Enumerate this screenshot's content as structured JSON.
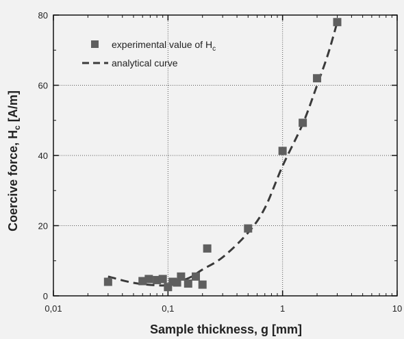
{
  "chart_data": {
    "type": "scatter",
    "xlabel": "Sample thickness, g [mm]",
    "ylabel": "Coercive force, H",
    "ylabel_sub": "c",
    "ylabel_unit": " [A/m]",
    "x_scale": "log",
    "xlim": [
      0.01,
      10
    ],
    "ylim": [
      0,
      80
    ],
    "x_tick_labels": [
      "0,01",
      "0,1",
      "1",
      "10"
    ],
    "y_tick_labels": [
      "0",
      "20",
      "40",
      "60",
      "80"
    ],
    "grid": true,
    "legend_position": "top-left",
    "series": [
      {
        "name": "experimental value of H",
        "name_sub": "c",
        "style": "marker-square",
        "color": "#5f5f5f",
        "points": [
          {
            "x": 0.03,
            "y": 4.0
          },
          {
            "x": 0.06,
            "y": 4.2
          },
          {
            "x": 0.068,
            "y": 4.8
          },
          {
            "x": 0.08,
            "y": 4.5
          },
          {
            "x": 0.09,
            "y": 4.8
          },
          {
            "x": 0.1,
            "y": 2.5
          },
          {
            "x": 0.11,
            "y": 4.0
          },
          {
            "x": 0.12,
            "y": 3.8
          },
          {
            "x": 0.13,
            "y": 5.5
          },
          {
            "x": 0.15,
            "y": 3.5
          },
          {
            "x": 0.175,
            "y": 5.5
          },
          {
            "x": 0.2,
            "y": 3.2
          },
          {
            "x": 0.22,
            "y": 13.5
          },
          {
            "x": 0.5,
            "y": 19.2
          },
          {
            "x": 1.0,
            "y": 41.3
          },
          {
            "x": 1.5,
            "y": 49.3
          },
          {
            "x": 2.0,
            "y": 62.0
          },
          {
            "x": 3.0,
            "y": 78.0
          }
        ]
      },
      {
        "name": "analytical curve",
        "style": "dashed-line",
        "color": "#3a3a3a",
        "points": [
          {
            "x": 0.03,
            "y": 5.5
          },
          {
            "x": 0.05,
            "y": 3.7
          },
          {
            "x": 0.08,
            "y": 3.0
          },
          {
            "x": 0.1,
            "y": 3.2
          },
          {
            "x": 0.15,
            "y": 5.0
          },
          {
            "x": 0.2,
            "y": 7.5
          },
          {
            "x": 0.3,
            "y": 11.0
          },
          {
            "x": 0.5,
            "y": 18.0
          },
          {
            "x": 0.7,
            "y": 25.0
          },
          {
            "x": 1.0,
            "y": 37.0
          },
          {
            "x": 1.5,
            "y": 49.0
          },
          {
            "x": 2.0,
            "y": 60.0
          },
          {
            "x": 2.5,
            "y": 69.0
          },
          {
            "x": 3.0,
            "y": 78.0
          }
        ]
      }
    ]
  }
}
